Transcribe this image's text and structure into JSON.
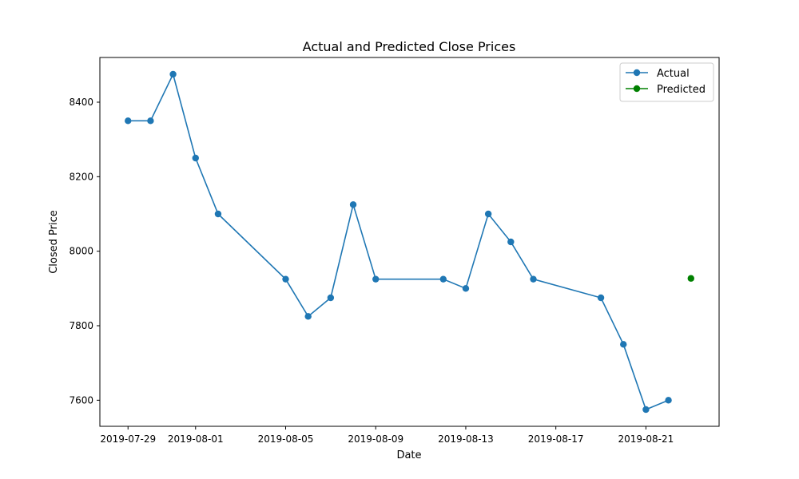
{
  "chart_data": {
    "type": "line",
    "title": "Actual and Predicted Close Prices",
    "xlabel": "Date",
    "ylabel": "Closed Price",
    "x_ticks": [
      "2019-07-29",
      "2019-08-01",
      "2019-08-05",
      "2019-08-09",
      "2019-08-13",
      "2019-08-17",
      "2019-08-21"
    ],
    "y_ticks": [
      7600,
      7800,
      8000,
      8200,
      8400
    ],
    "xlim": [
      "2019-07-27.75",
      "2019-08-24.25"
    ],
    "ylim": [
      7530,
      8520
    ],
    "legend_position": "top-right",
    "series": [
      {
        "name": "Actual",
        "color": "#1f77b4",
        "marker": "circle",
        "line": true,
        "points": [
          {
            "x": "2019-07-29",
            "y": 8350
          },
          {
            "x": "2019-07-30",
            "y": 8350
          },
          {
            "x": "2019-07-31",
            "y": 8475
          },
          {
            "x": "2019-08-01",
            "y": 8250
          },
          {
            "x": "2019-08-02",
            "y": 8100
          },
          {
            "x": "2019-08-05",
            "y": 7925
          },
          {
            "x": "2019-08-06",
            "y": 7825
          },
          {
            "x": "2019-08-07",
            "y": 7875
          },
          {
            "x": "2019-08-08",
            "y": 8125
          },
          {
            "x": "2019-08-09",
            "y": 7925
          },
          {
            "x": "2019-08-12",
            "y": 7925
          },
          {
            "x": "2019-08-13",
            "y": 7900
          },
          {
            "x": "2019-08-14",
            "y": 8100
          },
          {
            "x": "2019-08-15",
            "y": 8025
          },
          {
            "x": "2019-08-16",
            "y": 7925
          },
          {
            "x": "2019-08-19",
            "y": 7875
          },
          {
            "x": "2019-08-20",
            "y": 7750
          },
          {
            "x": "2019-08-21",
            "y": 7575
          },
          {
            "x": "2019-08-22",
            "y": 7600
          }
        ]
      },
      {
        "name": "Predicted",
        "color": "#008000",
        "marker": "circle",
        "line": false,
        "points": [
          {
            "x": "2019-08-23",
            "y": 7927
          }
        ]
      }
    ]
  }
}
